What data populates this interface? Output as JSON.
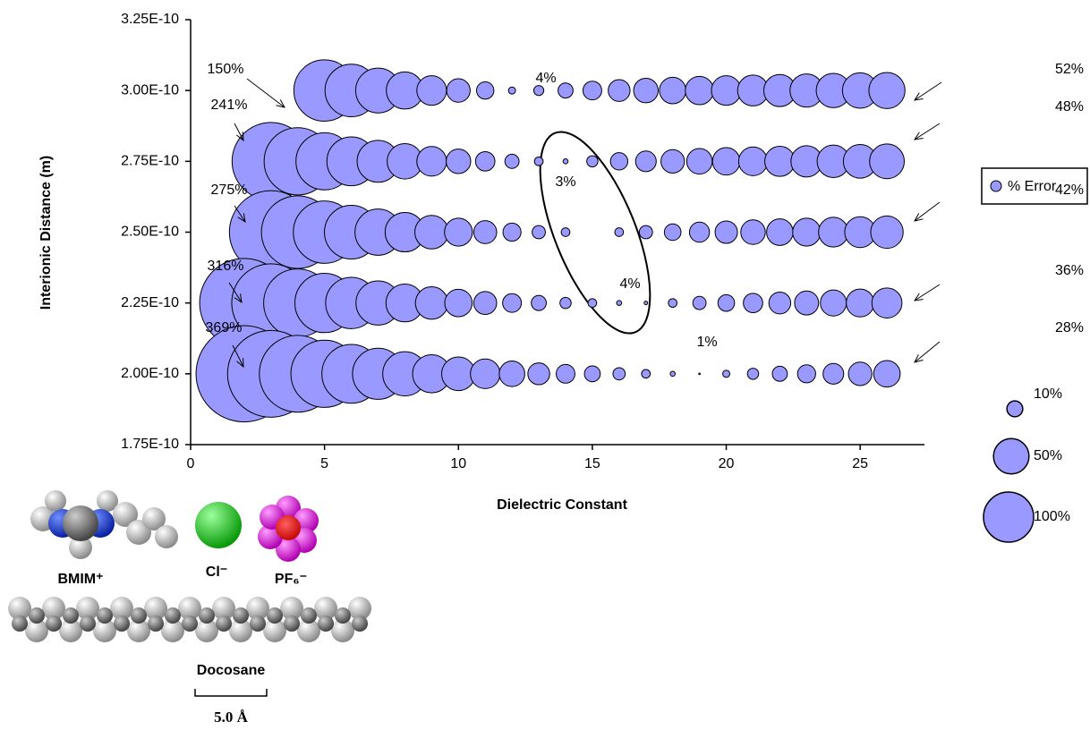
{
  "chart_data": {
    "type": "bubble",
    "xlabel": "Dielectric Constant",
    "ylabel": "Interionic Distance (m)",
    "xlim": [
      0,
      27.4
    ],
    "ylim": [
      1.75e-10,
      3.25e-10
    ],
    "xticks": [
      0,
      5,
      10,
      15,
      20,
      25
    ],
    "yticks": [
      {
        "value": 1.75e-10,
        "label": "1.75E-10"
      },
      {
        "value": 2e-10,
        "label": "2.00E-10"
      },
      {
        "value": 2.25e-10,
        "label": "2.25E-10"
      },
      {
        "value": 2.5e-10,
        "label": "2.50E-10"
      },
      {
        "value": 2.75e-10,
        "label": "2.75E-10"
      },
      {
        "value": 3e-10,
        "label": "3.00E-10"
      },
      {
        "value": 3.25e-10,
        "label": "3.25E-10"
      }
    ],
    "legend": "right",
    "series": [
      {
        "name": "% Error",
        "color": "#9999ff",
        "x": [
          5,
          6,
          7,
          8,
          9,
          10,
          11,
          12,
          13,
          14,
          15,
          16,
          17,
          18,
          19,
          20,
          21,
          22,
          23,
          24,
          25,
          26,
          3,
          4,
          5,
          6,
          7,
          8,
          9,
          10,
          11,
          12,
          13,
          14,
          15,
          16,
          17,
          18,
          19,
          20,
          21,
          22,
          23,
          24,
          25,
          26,
          3,
          4,
          5,
          6,
          7,
          8,
          9,
          10,
          11,
          12,
          13,
          14,
          16,
          17,
          18,
          19,
          20,
          21,
          22,
          23,
          24,
          25,
          26,
          2,
          3,
          4,
          5,
          6,
          7,
          8,
          9,
          10,
          11,
          12,
          13,
          14,
          15,
          16,
          17,
          18,
          19,
          20,
          21,
          22,
          23,
          24,
          25,
          26,
          2,
          3,
          4,
          5,
          6,
          7,
          8,
          9,
          10,
          11,
          12,
          13,
          14,
          15,
          16,
          17,
          18,
          19,
          20,
          21,
          22,
          23,
          24,
          25,
          26
        ],
        "y": [
          3e-10,
          3e-10,
          3e-10,
          3e-10,
          3e-10,
          3e-10,
          3e-10,
          3e-10,
          3e-10,
          3e-10,
          3e-10,
          3e-10,
          3e-10,
          3e-10,
          3e-10,
          3e-10,
          3e-10,
          3e-10,
          3e-10,
          3e-10,
          3e-10,
          3e-10,
          2.75e-10,
          2.75e-10,
          2.75e-10,
          2.75e-10,
          2.75e-10,
          2.75e-10,
          2.75e-10,
          2.75e-10,
          2.75e-10,
          2.75e-10,
          2.75e-10,
          2.75e-10,
          2.75e-10,
          2.75e-10,
          2.75e-10,
          2.75e-10,
          2.75e-10,
          2.75e-10,
          2.75e-10,
          2.75e-10,
          2.75e-10,
          2.75e-10,
          2.75e-10,
          2.75e-10,
          2.5e-10,
          2.5e-10,
          2.5e-10,
          2.5e-10,
          2.5e-10,
          2.5e-10,
          2.5e-10,
          2.5e-10,
          2.5e-10,
          2.5e-10,
          2.5e-10,
          2.5e-10,
          2.5e-10,
          2.5e-10,
          2.5e-10,
          2.5e-10,
          2.5e-10,
          2.5e-10,
          2.5e-10,
          2.5e-10,
          2.5e-10,
          2.5e-10,
          2.5e-10,
          2.25e-10,
          2.25e-10,
          2.25e-10,
          2.25e-10,
          2.25e-10,
          2.25e-10,
          2.25e-10,
          2.25e-10,
          2.25e-10,
          2.25e-10,
          2.25e-10,
          2.25e-10,
          2.25e-10,
          2.25e-10,
          2.25e-10,
          2.25e-10,
          2.25e-10,
          2.25e-10,
          2.25e-10,
          2.25e-10,
          2.25e-10,
          2.25e-10,
          2.25e-10,
          2.25e-10,
          2.25e-10,
          2e-10,
          2e-10,
          2e-10,
          2e-10,
          2e-10,
          2e-10,
          2e-10,
          2e-10,
          2e-10,
          2e-10,
          2e-10,
          2e-10,
          2e-10,
          2e-10,
          2e-10,
          2e-10,
          2e-10,
          2e-10,
          2e-10,
          2e-10,
          2e-10,
          2e-10,
          2e-10,
          2e-10,
          2e-10
        ],
        "sizes": [
          150,
          110,
          80,
          55,
          35,
          22,
          12,
          2,
          4,
          9,
          14,
          19,
          24,
          28,
          32,
          35,
          38,
          41,
          44,
          47,
          50,
          52,
          241,
          180,
          130,
          95,
          70,
          50,
          35,
          24,
          15,
          8,
          3,
          1,
          5,
          12,
          17,
          22,
          26,
          30,
          33,
          36,
          39,
          42,
          45,
          48,
          275,
          210,
          155,
          115,
          85,
          62,
          45,
          31,
          21,
          13,
          7,
          3,
          3,
          7,
          11,
          16,
          20,
          24,
          28,
          31,
          35,
          38,
          42,
          316,
          245,
          185,
          140,
          105,
          78,
          57,
          42,
          30,
          21,
          14,
          9,
          5,
          3,
          1,
          0.5,
          3,
          7,
          11,
          15,
          19,
          23,
          27,
          31,
          36,
          369,
          300,
          235,
          180,
          138,
          104,
          78,
          58,
          45,
          35,
          26,
          19,
          14,
          10,
          6,
          3,
          1,
          0.1,
          2,
          5,
          9,
          13,
          17,
          22,
          28
        ]
      }
    ],
    "size_legend": [
      {
        "value": 10,
        "label": "10%"
      },
      {
        "value": 50,
        "label": "50%"
      },
      {
        "value": 100,
        "label": "100%"
      }
    ],
    "annotations": [
      "150%",
      "52%",
      "241%",
      "48%",
      "275%",
      "42%",
      "316%",
      "36%",
      "369%",
      "28%",
      "4%",
      "3%",
      "4%",
      "1%"
    ]
  },
  "figure_labels": {
    "bmim": "BMIM⁺",
    "cl": "Cl⁻",
    "pf6": "PF₆⁻",
    "docosane": "Docosane",
    "scale": "5.0 Å"
  }
}
